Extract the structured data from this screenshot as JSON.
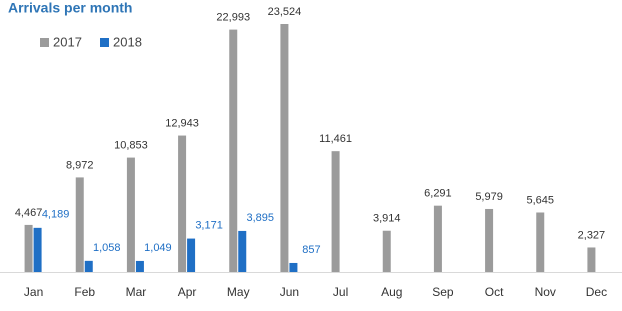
{
  "chart_data": {
    "type": "bar",
    "title": "Arrivals per month",
    "categories": [
      "Jan",
      "Feb",
      "Mar",
      "Apr",
      "May",
      "Jun",
      "Jul",
      "Aug",
      "Sep",
      "Oct",
      "Nov",
      "Dec"
    ],
    "series": [
      {
        "name": "2017",
        "color": "#9b9b9b",
        "values": [
          4467,
          8972,
          10853,
          12943,
          22993,
          23524,
          11461,
          3914,
          6291,
          5979,
          5645,
          2327
        ],
        "value_labels": [
          "4,467",
          "8,972",
          "10,853",
          "12,943",
          "22,993",
          "23,524",
          "11,461",
          "3,914",
          "6,291",
          "5,979",
          "5,645",
          "2,327"
        ]
      },
      {
        "name": "2018",
        "color": "#1f6fc5",
        "values": [
          4189,
          1058,
          1049,
          3171,
          3895,
          857,
          null,
          null,
          null,
          null,
          null,
          null
        ],
        "value_labels": [
          "4,189",
          "1,058",
          "1,049",
          "3,171",
          "3,895",
          "857",
          null,
          null,
          null,
          null,
          null,
          null
        ]
      }
    ],
    "legend": "top-left"
  }
}
